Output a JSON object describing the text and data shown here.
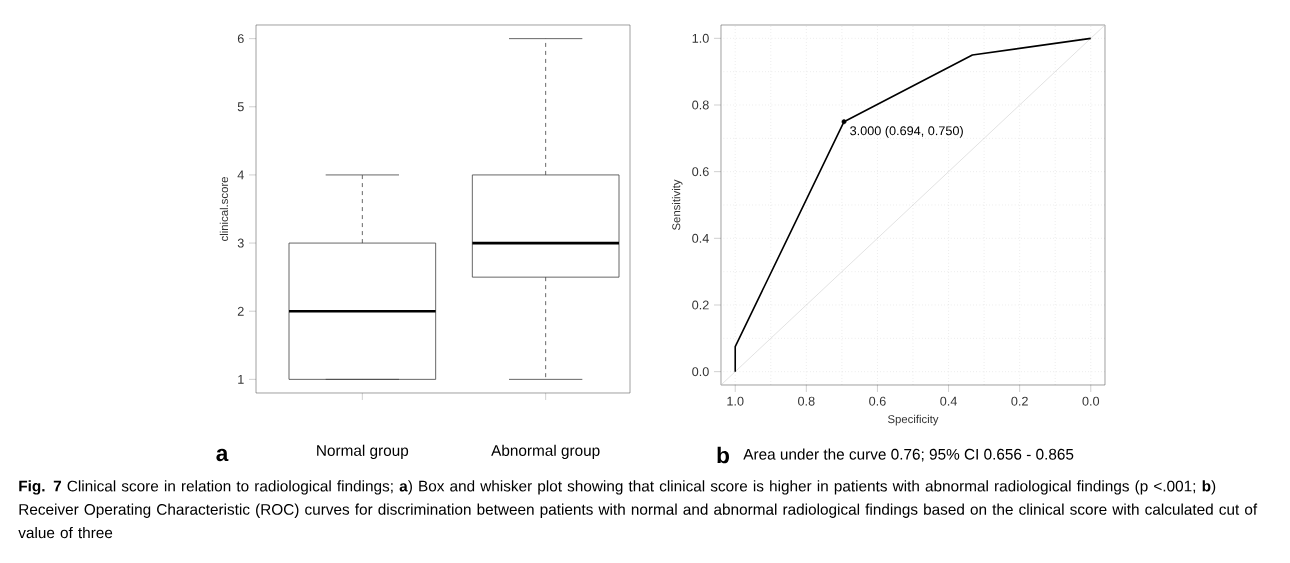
{
  "chart_data": [
    {
      "type": "box",
      "ylabel": "clinical.score",
      "categories": [
        "Normal group",
        "Abnormal group"
      ],
      "boxes": [
        {
          "low": 1,
          "q1": 1,
          "median": 2,
          "q3": 3,
          "high": 4
        },
        {
          "low": 1,
          "q1": 2.5,
          "median": 3,
          "q3": 4,
          "high": 6
        }
      ],
      "ylim": [
        0.8,
        6.2
      ],
      "yticks": [
        1,
        2,
        3,
        4,
        5,
        6
      ],
      "annotations": [
        "a",
        "**Fig. 7** Clinical score in relation to radiological findings; **a**) Box and whisker plot showing that clinical score is higher in patients with abnormal radiological findings (p <.001; **b**) Receiver Operating Characteristic (ROC) curves for discrimination between patients with normal and abnormal radiological findings based on the clinical score with calculated cut of value of three"
      ]
    },
    {
      "type": "line",
      "xlabel": "Specificity",
      "ylabel": "Sensitivity",
      "series": [
        {
          "type": "line",
          "color": "#c8c8c8",
          "x": [
            1.04,
            -0.04
          ],
          "values": [
            -0.04,
            1.04
          ]
        },
        {
          "type": "line",
          "color": "#000000",
          "x": [
            1.0,
            1.0,
            0.694,
            0.333,
            0.0
          ],
          "values": [
            0.0,
            0.075,
            0.75,
            0.95,
            1.0
          ]
        },
        {
          "type": "scatter",
          "color": "#000000",
          "x": [
            0.694
          ],
          "values": [
            0.75
          ]
        }
      ],
      "xlim": [
        1.04,
        -0.04
      ],
      "ylim": [
        -0.04,
        1.04
      ],
      "xticks": [
        {
          "value": 1,
          "label": "1.0"
        },
        0.8,
        0.6,
        0.4,
        0.2,
        {
          "value": 0,
          "label": "0.0"
        }
      ],
      "yticks": [
        {
          "value": 0,
          "label": "0.0"
        },
        0.2,
        0.4,
        0.6,
        0.8,
        {
          "value": 1,
          "label": "1.0"
        }
      ],
      "grid": true,
      "annotations": [
        {
          "text": "3.000 (0.694, 0.750)",
          "x": 0.694,
          "y": 0.75
        },
        "b",
        "Area under the curve 0.76; 95% CI 0.656 - 0.865"
      ]
    }
  ]
}
